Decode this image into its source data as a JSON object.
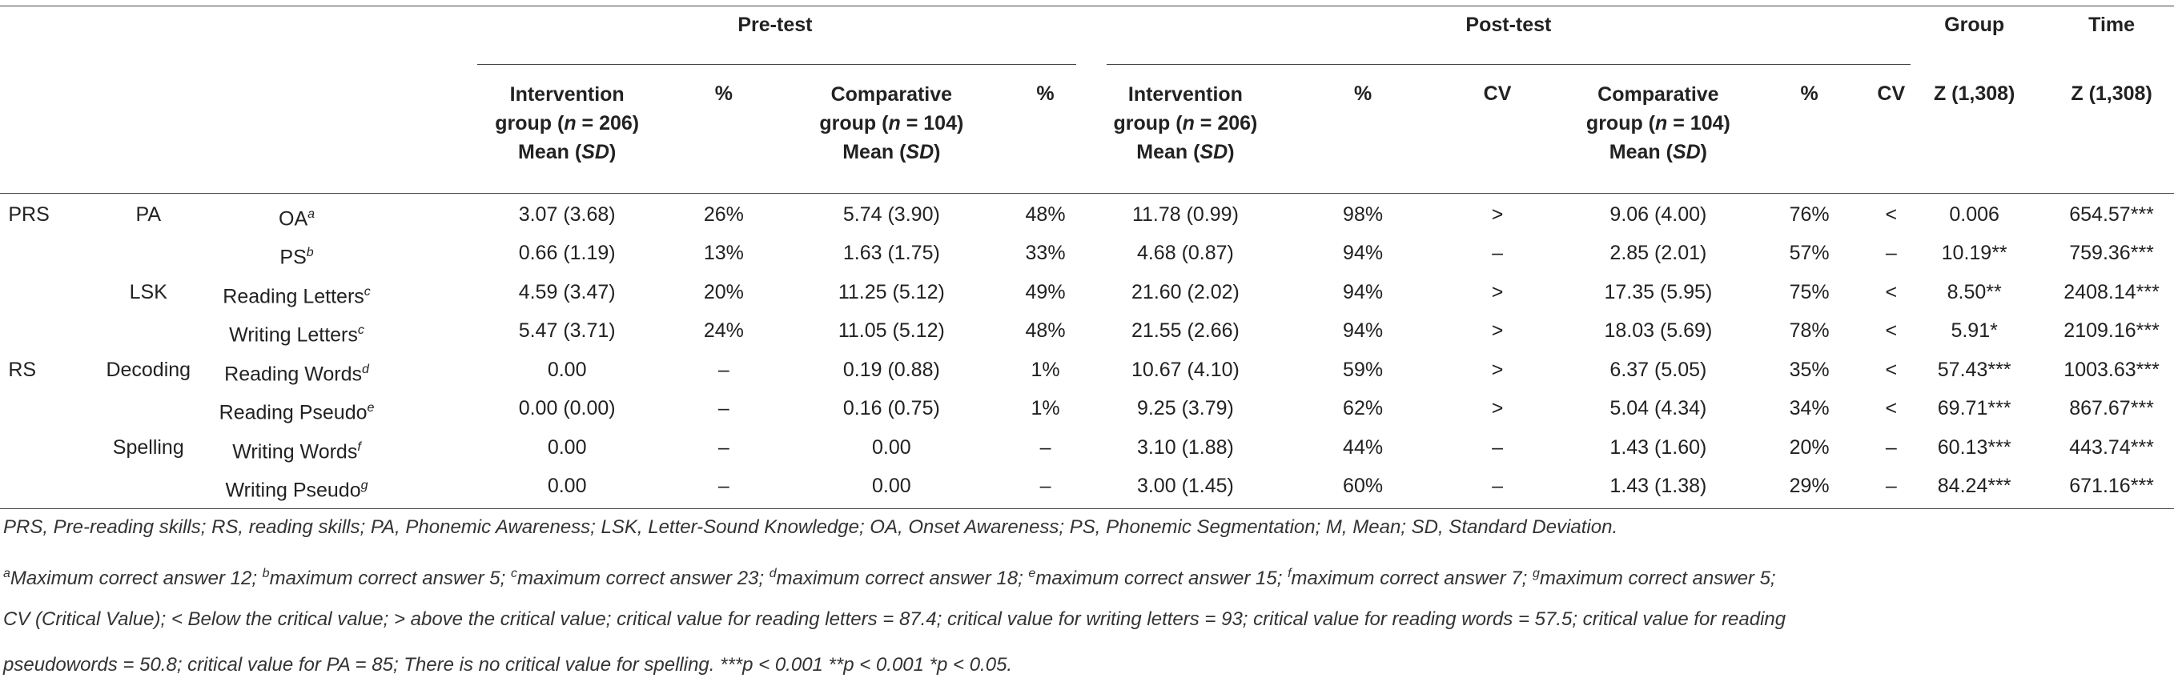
{
  "header": {
    "pretest": "Pre-test",
    "posttest": "Post-test",
    "group": "Group",
    "time": "Time",
    "cols": {
      "int_pre_l1": "Intervention",
      "int_pre_l2a": "group (",
      "int_pre_n": "n",
      "int_pre_l2b": " = 206)",
      "int_pre_l3a": "Mean (",
      "int_pre_sd": "SD",
      "int_pre_l3b": ")",
      "pct": "%",
      "comp_pre_l1": "Comparative",
      "comp_pre_l2a": "group (",
      "comp_pre_n": "n",
      "comp_pre_l2b": " = 104)",
      "cv": "CV",
      "z": "Z (1,308)"
    }
  },
  "rows": [
    {
      "a": "PRS",
      "b": "PA",
      "c": "OA",
      "sup": "a",
      "v": [
        "3.07 (3.68)",
        "26%",
        "5.74 (3.90)",
        "48%",
        "11.78 (0.99)",
        "98%",
        ">",
        "9.06 (4.00)",
        "76%",
        "<",
        "0.006",
        "654.57***"
      ]
    },
    {
      "a": "",
      "b": "",
      "c": "PS",
      "sup": "b",
      "v": [
        "0.66 (1.19)",
        "13%",
        "1.63 (1.75)",
        "33%",
        "4.68 (0.87)",
        "94%",
        "–",
        "2.85 (2.01)",
        "57%",
        "–",
        "10.19**",
        "759.36***"
      ]
    },
    {
      "a": "",
      "b": "LSK",
      "c": "Reading Letters",
      "sup": "c",
      "v": [
        "4.59 (3.47)",
        "20%",
        "11.25 (5.12)",
        "49%",
        "21.60 (2.02)",
        "94%",
        ">",
        "17.35 (5.95)",
        "75%",
        "<",
        "8.50**",
        "2408.14***"
      ]
    },
    {
      "a": "",
      "b": "",
      "c": "Writing Letters",
      "sup": "c",
      "v": [
        "5.47 (3.71)",
        "24%",
        "11.05 (5.12)",
        "48%",
        "21.55 (2.66)",
        "94%",
        ">",
        "18.03 (5.69)",
        "78%",
        "<",
        "5.91*",
        "2109.16***"
      ]
    },
    {
      "a": "RS",
      "b": "Decoding",
      "c": "Reading Words",
      "sup": "d",
      "v": [
        "0.00",
        "–",
        "0.19 (0.88)",
        "1%",
        "10.67 (4.10)",
        "59%",
        ">",
        "6.37 (5.05)",
        "35%",
        "<",
        "57.43***",
        "1003.63***"
      ]
    },
    {
      "a": "",
      "b": "",
      "c": "Reading Pseudo",
      "sup": "e",
      "v": [
        "0.00 (0.00)",
        "–",
        "0.16 (0.75)",
        "1%",
        "9.25 (3.79)",
        "62%",
        ">",
        "5.04 (4.34)",
        "34%",
        "<",
        "69.71***",
        "867.67***"
      ]
    },
    {
      "a": "",
      "b": "Spelling",
      "c": "Writing Words",
      "sup": "f",
      "v": [
        "0.00",
        "–",
        "0.00",
        "–",
        "3.10 (1.88)",
        "44%",
        "–",
        "1.43 (1.60)",
        "20%",
        "–",
        "60.13***",
        "443.74***"
      ]
    },
    {
      "a": "",
      "b": "",
      "c": "Writing Pseudo",
      "sup": "g",
      "v": [
        "0.00",
        "–",
        "0.00",
        "–",
        "3.00 (1.45)",
        "60%",
        "–",
        "1.43 (1.38)",
        "29%",
        "–",
        "84.24***",
        "671.16***"
      ]
    }
  ],
  "notes": {
    "line1": "PRS, Pre-reading skills; RS, reading skills; PA, Phonemic Awareness; LSK, Letter-Sound Knowledge; OA, Onset Awareness; PS, Phonemic Segmentation; M, Mean; SD, Standard Deviation.",
    "line2": [
      {
        "sup": "a",
        "text": "Maximum correct answer 12; "
      },
      {
        "sup": "b",
        "text": "maximum correct answer 5; "
      },
      {
        "sup": "c",
        "text": "maximum correct answer 23; "
      },
      {
        "sup": "d",
        "text": "maximum correct answer 18; "
      },
      {
        "sup": "e",
        "text": "maximum correct answer 15; "
      },
      {
        "sup": "f",
        "text": "maximum correct answer 7; "
      },
      {
        "sup": "g",
        "text": "maximum correct answer 5;"
      }
    ],
    "line3": "CV (Critical Value); < Below the critical value; > above the critical value; critical value for reading letters = 87.4; critical value for writing letters = 93; critical value for reading words = 57.5; critical value for reading",
    "line4": "pseudowords = 50.8; critical value for PA = 85; There is no critical value for spelling. ***p < 0.001 **p < 0.001 *p < 0.05."
  }
}
